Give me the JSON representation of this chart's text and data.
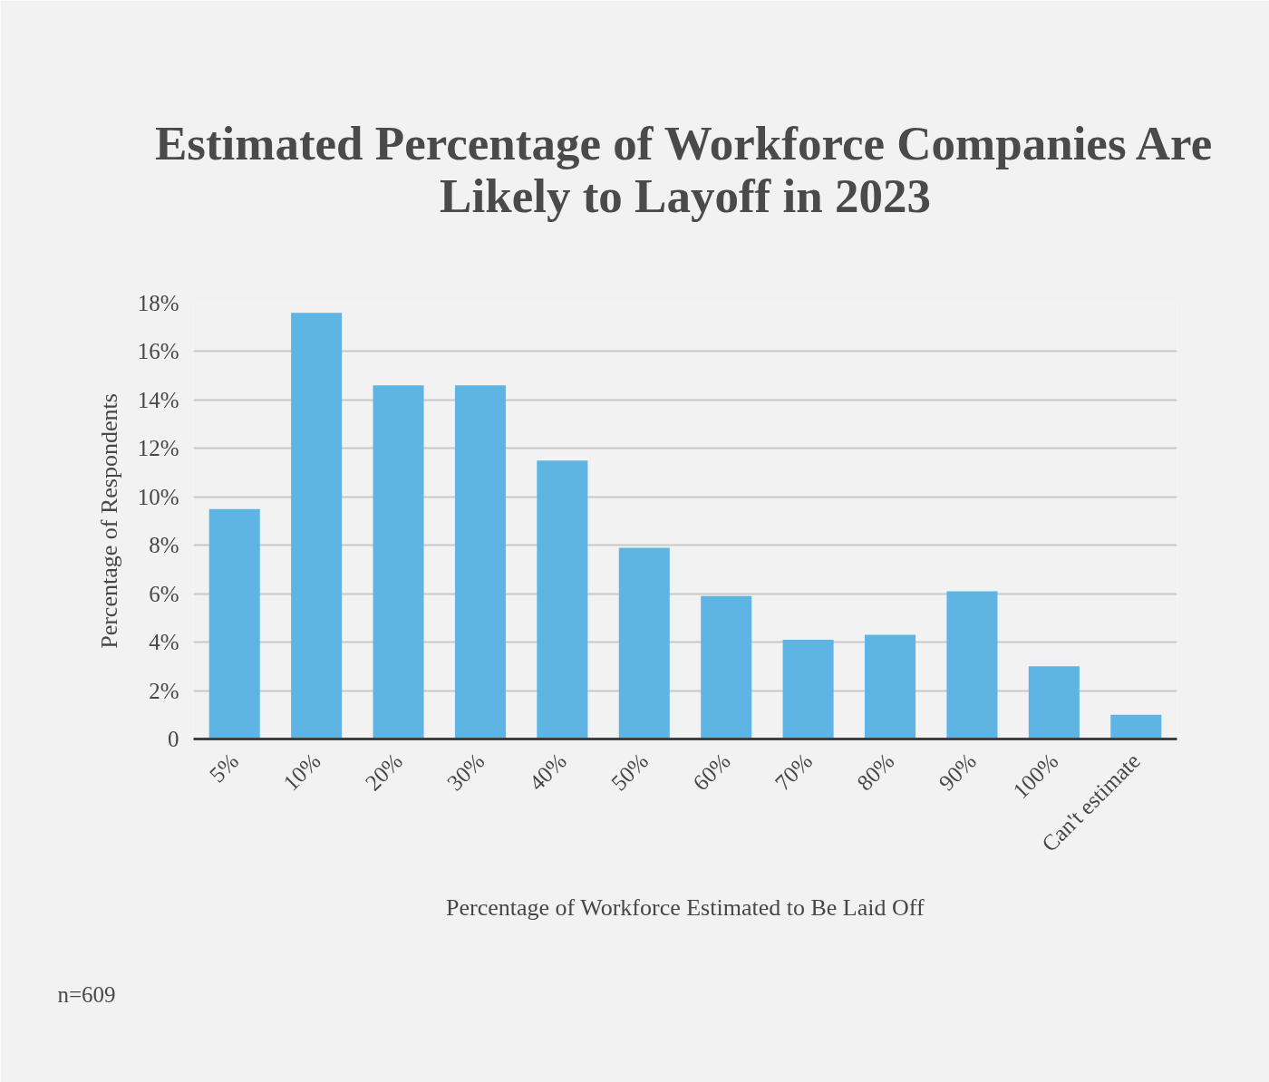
{
  "chart_data": {
    "type": "bar",
    "title": "Estimated Percentage of Workforce Companies Are Likely to Layoff in 2023",
    "xlabel": "Percentage of Workforce Estimated to Be Laid Off",
    "ylabel": "Percentage of Respondents",
    "categories": [
      "5%",
      "10%",
      "20%",
      "30%",
      "40%",
      "50%",
      "60%",
      "70%",
      "80%",
      "90%",
      "100%",
      "Can't estimate"
    ],
    "values": [
      9.5,
      17.6,
      14.6,
      14.6,
      11.5,
      7.9,
      5.9,
      4.1,
      4.3,
      6.1,
      3.0,
      1.0
    ],
    "color": "#5eb5e3",
    "ylim": [
      0,
      18
    ],
    "yticks": [
      0,
      {
        "value": 2,
        "label": "2%"
      },
      {
        "value": 4,
        "label": "4%"
      },
      {
        "value": 6,
        "label": "6%"
      },
      {
        "value": 8,
        "label": "8%"
      },
      {
        "value": 10,
        "label": "10%"
      },
      {
        "value": 12,
        "label": "12%"
      },
      {
        "value": 14,
        "label": "14%"
      },
      {
        "value": 16,
        "label": "16%"
      },
      {
        "value": 18,
        "label": "18%"
      }
    ],
    "grid": "y",
    "annotations": [
      "n=609"
    ]
  }
}
